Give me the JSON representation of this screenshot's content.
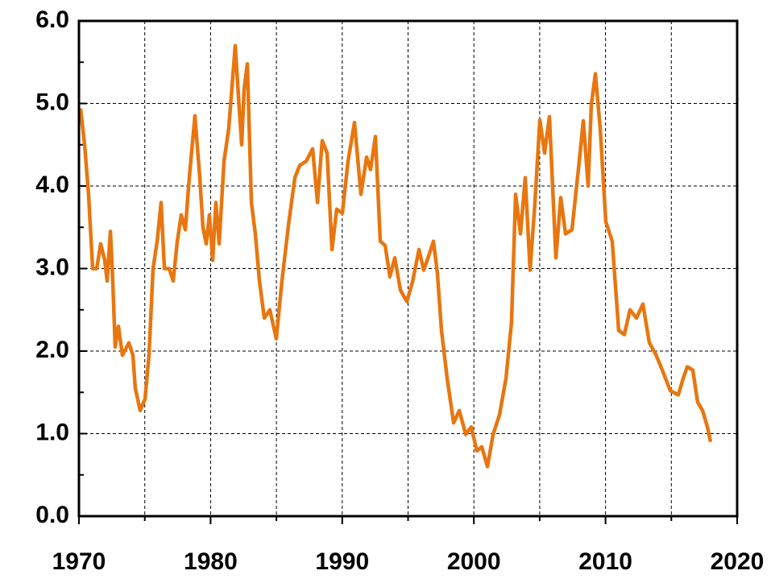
{
  "chart_data": {
    "type": "line",
    "x": [
      1970.12,
      1970.43,
      1970.73,
      1971.04,
      1971.35,
      1971.65,
      1971.96,
      1972.14,
      1972.39,
      1972.57,
      1972.75,
      1973.0,
      1973.3,
      1973.79,
      1974.1,
      1974.28,
      1974.65,
      1975.02,
      1975.32,
      1975.63,
      1975.94,
      1976.24,
      1976.49,
      1976.85,
      1977.16,
      1977.47,
      1977.77,
      1978.08,
      1978.38,
      1978.81,
      1979.18,
      1979.42,
      1979.67,
      1979.91,
      1980.16,
      1980.4,
      1980.65,
      1981.02,
      1981.38,
      1981.87,
      1982.12,
      1982.36,
      1982.55,
      1982.79,
      1983.1,
      1983.4,
      1983.71,
      1984.08,
      1984.5,
      1984.99,
      1985.42,
      1985.91,
      1986.4,
      1986.77,
      1987.26,
      1987.75,
      1988.12,
      1988.48,
      1988.85,
      1989.22,
      1989.58,
      1990.01,
      1990.44,
      1990.93,
      1991.42,
      1991.85,
      1992.15,
      1992.52,
      1992.89,
      1993.26,
      1993.62,
      1993.99,
      1994.42,
      1994.91,
      1995.34,
      1995.83,
      1996.19,
      1996.56,
      1996.93,
      1997.23,
      1997.54,
      1997.97,
      1998.46,
      1998.89,
      1999.38,
      1999.8,
      2000.23,
      2000.6,
      2001.03,
      2001.46,
      2001.95,
      2002.44,
      2002.86,
      2003.17,
      2003.54,
      2003.9,
      2004.27,
      2004.64,
      2005.01,
      2005.37,
      2005.74,
      2006.23,
      2006.6,
      2006.96,
      2007.45,
      2007.94,
      2008.31,
      2008.68,
      2008.92,
      2009.23,
      2009.6,
      2010.02,
      2010.51,
      2011.0,
      2011.43,
      2011.86,
      2012.35,
      2012.84,
      2013.33,
      2013.82,
      2014.31,
      2014.92,
      2015.53,
      2015.9,
      2016.21,
      2016.63,
      2017.0,
      2017.37,
      2017.74,
      2017.98
    ],
    "series": [
      {
        "color": "#e8760f",
        "values": [
          4.94,
          4.5,
          3.9,
          3.0,
          3.0,
          3.3,
          3.1,
          2.85,
          3.45,
          2.85,
          2.05,
          2.3,
          1.95,
          2.1,
          1.95,
          1.55,
          1.28,
          1.42,
          1.95,
          3.0,
          3.33,
          3.8,
          3.0,
          3.0,
          2.85,
          3.33,
          3.65,
          3.47,
          4.1,
          4.85,
          4.1,
          3.5,
          3.3,
          3.65,
          3.1,
          3.8,
          3.3,
          4.3,
          4.7,
          5.7,
          5.08,
          4.5,
          5.18,
          5.48,
          3.8,
          3.42,
          2.85,
          2.4,
          2.5,
          2.15,
          2.85,
          3.52,
          4.1,
          4.25,
          4.3,
          4.45,
          3.8,
          4.55,
          4.4,
          3.23,
          3.72,
          3.67,
          4.3,
          4.77,
          3.9,
          4.35,
          4.2,
          4.6,
          3.33,
          3.28,
          2.9,
          3.13,
          2.74,
          2.6,
          2.84,
          3.23,
          2.98,
          3.15,
          3.33,
          2.94,
          2.25,
          1.67,
          1.13,
          1.28,
          0.99,
          1.08,
          0.79,
          0.84,
          0.6,
          0.99,
          1.23,
          1.67,
          2.35,
          3.9,
          3.42,
          4.1,
          2.98,
          3.8,
          4.8,
          4.4,
          4.84,
          3.13,
          3.86,
          3.42,
          3.47,
          4.2,
          4.79,
          4.0,
          4.98,
          5.36,
          4.69,
          3.57,
          3.33,
          2.25,
          2.2,
          2.5,
          2.4,
          2.57,
          2.1,
          1.96,
          1.77,
          1.52,
          1.47,
          1.67,
          1.81,
          1.77,
          1.38,
          1.28,
          1.08,
          0.9
        ]
      }
    ],
    "xlim": [
      1970,
      2020
    ],
    "xticks": [
      1970,
      1980,
      1990,
      2000,
      2010,
      2020
    ],
    "xminor": [
      1975,
      1985,
      1995,
      2005,
      2015
    ],
    "ylim": [
      0,
      6
    ],
    "yticks": [
      {
        "value": 0,
        "label": "0.0"
      },
      {
        "value": 1,
        "label": "1.0"
      },
      {
        "value": 2,
        "label": "2.0"
      },
      {
        "value": 3,
        "label": "3.0"
      },
      {
        "value": 4,
        "label": "4.0"
      },
      {
        "value": 5,
        "label": "5.0"
      },
      {
        "value": 6,
        "label": "6.0"
      }
    ],
    "yminor": [
      0.5,
      1.5,
      2.5,
      3.5,
      4.5,
      5.5
    ],
    "grid": true
  }
}
